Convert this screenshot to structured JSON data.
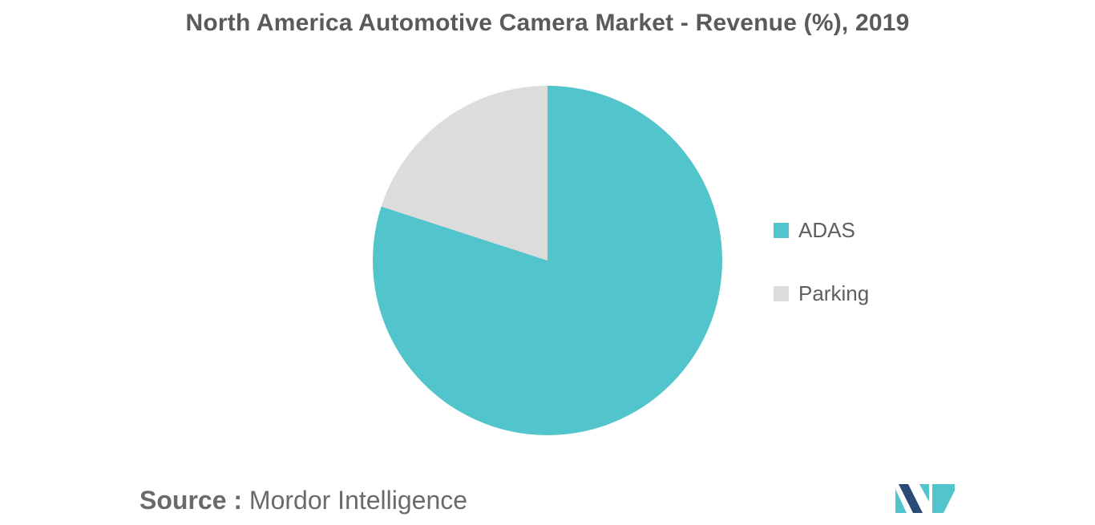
{
  "chart_data": {
    "type": "pie",
    "title": "North America Automotive Camera Market - Revenue (%), 2019",
    "slices": [
      {
        "label": "ADAS",
        "value": 80,
        "color": "#52c4cb"
      },
      {
        "label": "Parking",
        "value": 20,
        "color": "#dcdcdc"
      }
    ],
    "legend_position": "right"
  },
  "source": {
    "key": "Source :",
    "value": "Mordor Intelligence"
  },
  "logo": {
    "colors": [
      "#2b4a78",
      "#52c4cb"
    ]
  }
}
